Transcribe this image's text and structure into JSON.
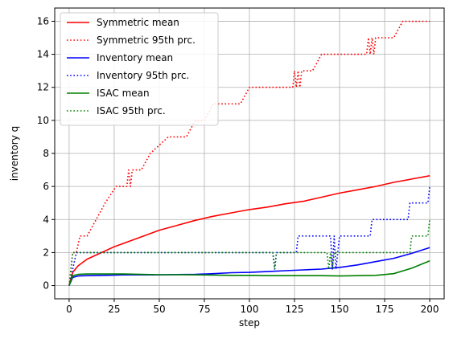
{
  "chart_data": {
    "type": "line",
    "title": "",
    "xlabel": "step",
    "ylabel": "inventory q",
    "xlim": [
      -8,
      208
    ],
    "ylim": [
      -0.8,
      16.8
    ],
    "xticks": [
      0,
      25,
      50,
      75,
      100,
      125,
      150,
      175,
      200
    ],
    "yticks": [
      0,
      2,
      4,
      6,
      8,
      10,
      12,
      14,
      16
    ],
    "grid": true,
    "legend_position": "top-left",
    "series": [
      {
        "name": "Symmetric mean",
        "color": "#ff0000",
        "style": "solid",
        "x": [
          0,
          2,
          5,
          10,
          15,
          20,
          25,
          30,
          40,
          50,
          60,
          70,
          80,
          90,
          100,
          110,
          120,
          130,
          140,
          150,
          160,
          170,
          180,
          190,
          200
        ],
        "y": [
          0,
          0.8,
          1.2,
          1.6,
          1.85,
          2.1,
          2.35,
          2.55,
          2.95,
          3.35,
          3.65,
          3.95,
          4.2,
          4.4,
          4.6,
          4.75,
          4.95,
          5.1,
          5.35,
          5.6,
          5.8,
          6.0,
          6.25,
          6.45,
          6.65
        ]
      },
      {
        "name": "Symmetric 95th prc.",
        "color": "#ff0000",
        "style": "dotted",
        "x": [
          0,
          2,
          4,
          6,
          10,
          15,
          20,
          26,
          30,
          32,
          33,
          34,
          35,
          40,
          45,
          55,
          65,
          70,
          75,
          80,
          84,
          90,
          95,
          100,
          103,
          110,
          115,
          120,
          124,
          125,
          126,
          127,
          128,
          129,
          130,
          135,
          140,
          145,
          150,
          155,
          160,
          165,
          166,
          167,
          168,
          169,
          170,
          175,
          180,
          185,
          190,
          195,
          200
        ],
        "y": [
          0,
          2,
          2,
          3,
          3,
          4,
          5,
          6,
          6,
          6,
          7,
          6,
          7,
          7,
          8,
          9,
          9,
          10,
          10,
          11,
          11,
          11,
          11,
          12,
          12,
          12,
          12,
          12,
          12,
          13,
          12,
          13,
          12,
          13,
          13,
          13,
          14,
          14,
          14,
          14,
          14,
          14,
          15,
          14,
          15,
          14,
          15,
          15,
          15,
          16,
          16,
          16,
          16
        ]
      },
      {
        "name": "Inventory mean",
        "color": "#0000ff",
        "style": "solid",
        "x": [
          0,
          2,
          5,
          10,
          20,
          30,
          40,
          50,
          60,
          70,
          80,
          90,
          100,
          110,
          120,
          130,
          140,
          150,
          160,
          170,
          180,
          190,
          200
        ],
        "y": [
          0,
          0.5,
          0.58,
          0.6,
          0.62,
          0.65,
          0.65,
          0.65,
          0.67,
          0.68,
          0.72,
          0.78,
          0.8,
          0.85,
          0.9,
          0.95,
          1.0,
          1.1,
          1.25,
          1.45,
          1.65,
          1.95,
          2.3
        ]
      },
      {
        "name": "Inventory 95th prc.",
        "color": "#0000ff",
        "style": "dotted",
        "x": [
          0,
          2,
          4,
          6,
          10,
          50,
          100,
          113,
          114,
          115,
          116,
          120,
          126,
          127,
          130,
          140,
          145,
          146,
          147,
          148,
          150,
          160,
          167,
          168,
          180,
          188,
          189,
          199,
          200
        ],
        "y": [
          0,
          1,
          2,
          2,
          2,
          2,
          2,
          2,
          1,
          2,
          2,
          2,
          2,
          3,
          3,
          3,
          3,
          1,
          3,
          1,
          3,
          3,
          3,
          4,
          4,
          4,
          5,
          5,
          6
        ]
      },
      {
        "name": "ISAC mean",
        "color": "#008000",
        "style": "solid",
        "x": [
          0,
          2,
          5,
          10,
          20,
          30,
          40,
          50,
          60,
          70,
          80,
          90,
          100,
          110,
          120,
          130,
          140,
          150,
          160,
          170,
          180,
          190,
          200
        ],
        "y": [
          0,
          0.6,
          0.68,
          0.7,
          0.7,
          0.7,
          0.68,
          0.66,
          0.66,
          0.65,
          0.64,
          0.62,
          0.62,
          0.6,
          0.6,
          0.6,
          0.6,
          0.58,
          0.6,
          0.62,
          0.72,
          1.05,
          1.5
        ]
      },
      {
        "name": "ISAC 95th prc.",
        "color": "#008000",
        "style": "dotted",
        "x": [
          0,
          2,
          4,
          50,
          100,
          113,
          114,
          115,
          116,
          140,
          143,
          144,
          145,
          146,
          147,
          148,
          150,
          170,
          185,
          189,
          190,
          199,
          200
        ],
        "y": [
          0,
          2,
          2,
          2,
          2,
          2,
          1,
          2,
          2,
          2,
          2,
          1,
          2,
          1,
          2,
          2,
          2,
          2,
          2,
          2,
          3,
          3,
          4
        ]
      }
    ]
  }
}
